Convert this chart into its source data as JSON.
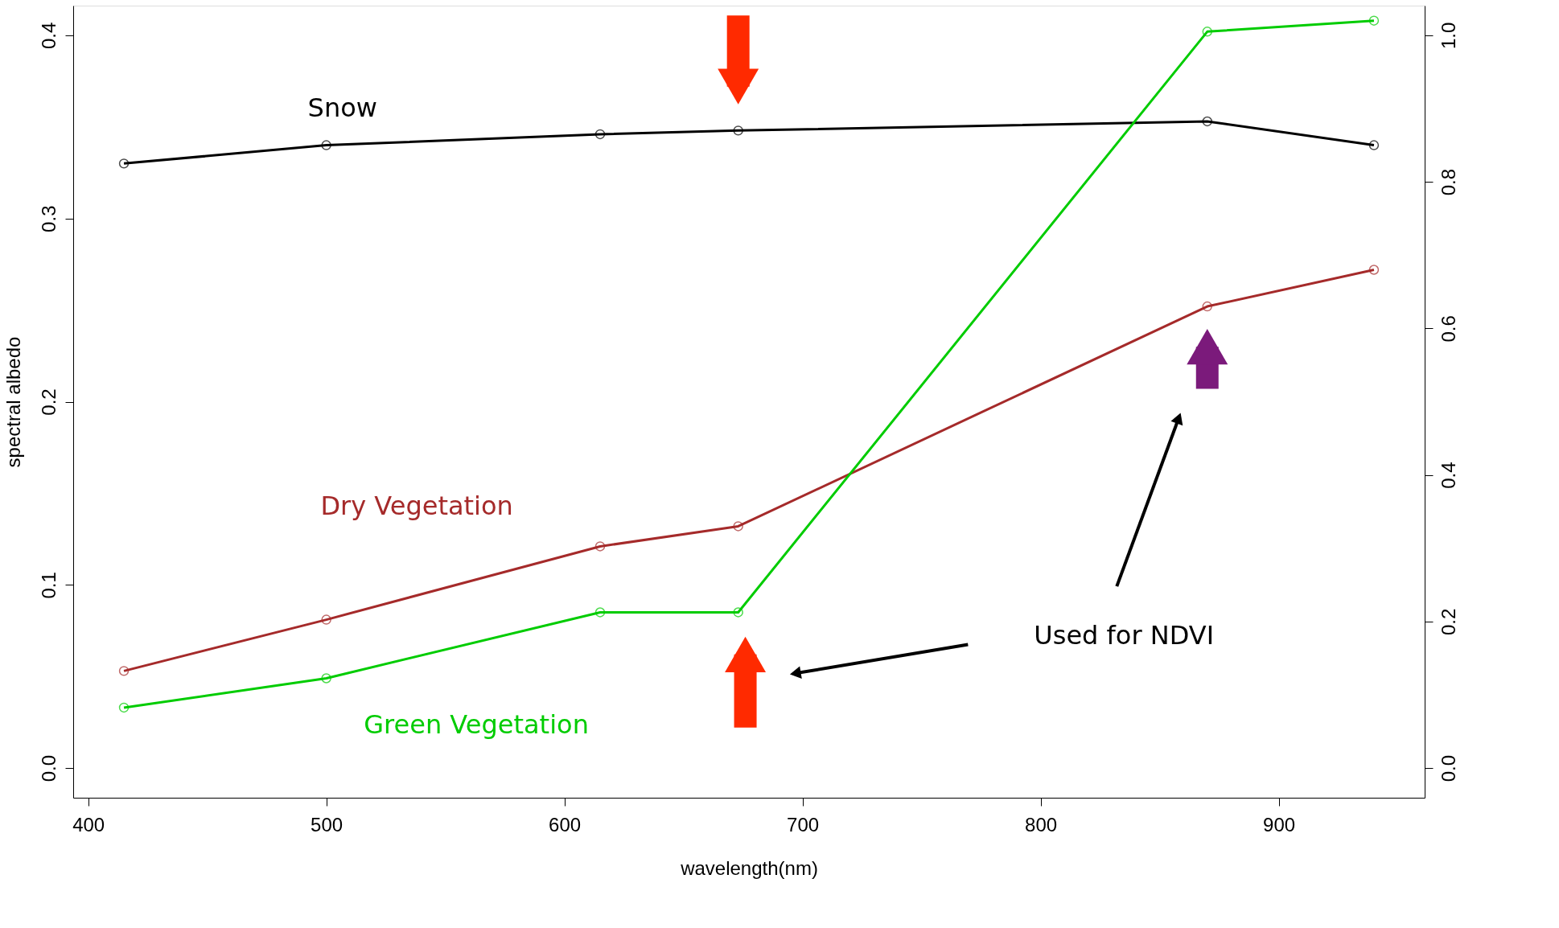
{
  "chart_data": {
    "type": "line",
    "x": [
      415,
      500,
      615,
      673,
      870,
      940
    ],
    "xlabel": "wavelength(nm)",
    "ylabel": "spectral albedo",
    "series": [
      {
        "name": "Snow",
        "color": "#000000",
        "values": [
          0.33,
          0.34,
          0.346,
          0.348,
          0.353,
          0.34
        ]
      },
      {
        "name": "Dry Vegetation",
        "color": "#a52a2a",
        "values": [
          0.053,
          0.081,
          0.121,
          0.132,
          0.252,
          0.272
        ]
      },
      {
        "name": "Green Vegetation",
        "color": "#00cc00",
        "values": [
          0.033,
          0.049,
          0.085,
          0.085,
          0.402,
          0.408
        ]
      }
    ],
    "annotations": [
      "Used for NDVI"
    ],
    "marker": "circle",
    "line_style": "solid",
    "grid": false,
    "legend": false,
    "xlim": [
      393.7,
      961.3
    ],
    "xticks": [
      400,
      500,
      600,
      700,
      800,
      900
    ],
    "ylim": [
      -0.0162,
      0.4162
    ],
    "yticks": [
      {
        "value": 0,
        "label": "0.0"
      },
      {
        "value": 0.1,
        "label": "0.1"
      },
      {
        "value": 0.2,
        "label": "0.2"
      },
      {
        "value": 0.3,
        "label": "0.3"
      },
      {
        "value": 0.4,
        "label": "0.4"
      }
    ],
    "y2lim": [
      -0.0405,
      1.0405
    ],
    "y2ticks": [
      {
        "value": 0,
        "label": "0.0"
      },
      {
        "value": 0.2,
        "label": "0.2"
      },
      {
        "value": 0.4,
        "label": "0.4"
      },
      {
        "value": 0.6,
        "label": "0.6"
      },
      {
        "value": 0.8,
        "label": "0.8"
      },
      {
        "value": 1.0,
        "label": "1.0"
      }
    ]
  }
}
